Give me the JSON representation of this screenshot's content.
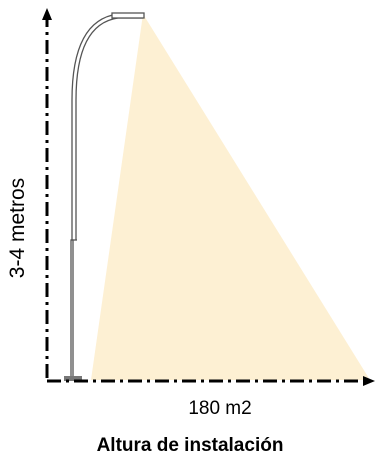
{
  "labels": {
    "height": "3-4 metros",
    "area": "180 m2",
    "caption": "Altura de instalación"
  },
  "colors": {
    "light_cone": "#fdf0d3",
    "pole": "#555555",
    "axis": "#000000"
  }
}
